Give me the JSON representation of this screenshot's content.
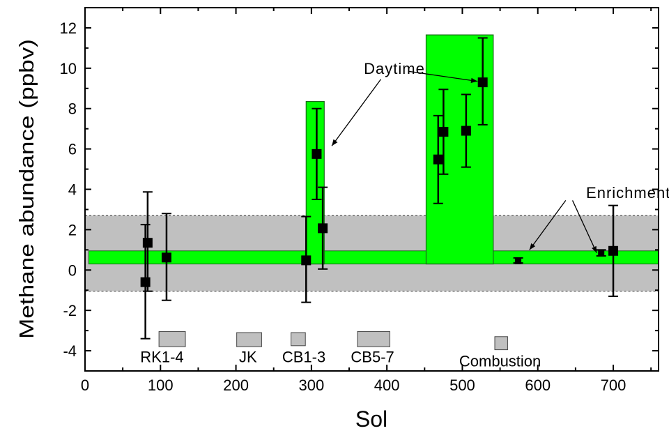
{
  "chart_data": {
    "type": "scatter",
    "title": "",
    "xlabel": "Sol",
    "ylabel": "Methane abundance (ppbv)",
    "xlim": [
      0,
      760
    ],
    "ylim": [
      -5,
      13
    ],
    "xticks": [
      0,
      100,
      200,
      300,
      400,
      500,
      600,
      700
    ],
    "yticks": [
      -4,
      -2,
      0,
      2,
      4,
      6,
      8,
      10,
      12
    ],
    "grid": false,
    "colors": {
      "green": "#00ff00",
      "grey": "#c0c0c0",
      "marker": "#000000"
    },
    "points": [
      {
        "x": 80,
        "y": -0.6,
        "ylo": -3.4,
        "yhi": 2.25
      },
      {
        "x": 83,
        "y": 1.35,
        "ylo": -1.05,
        "yhi": 3.87
      },
      {
        "x": 108,
        "y": 0.62,
        "ylo": -1.5,
        "yhi": 2.8
      },
      {
        "x": 293,
        "y": 0.48,
        "ylo": -1.6,
        "yhi": 2.65
      },
      {
        "x": 307,
        "y": 5.75,
        "ylo": 3.5,
        "yhi": 8.0
      },
      {
        "x": 315,
        "y": 2.07,
        "ylo": 0.05,
        "yhi": 4.1
      },
      {
        "x": 468,
        "y": 5.48,
        "ylo": 3.3,
        "yhi": 7.65
      },
      {
        "x": 475,
        "y": 6.85,
        "ylo": 4.75,
        "yhi": 8.95
      },
      {
        "x": 505,
        "y": 6.9,
        "ylo": 5.1,
        "yhi": 8.7
      },
      {
        "x": 527,
        "y": 9.3,
        "ylo": 7.2,
        "yhi": 11.5
      },
      {
        "x": 574,
        "y": 0.45,
        "ylo": 0.35,
        "yhi": 0.6
      },
      {
        "x": 684,
        "y": 0.85,
        "ylo": 0.7,
        "yhi": 1.0
      },
      {
        "x": 700,
        "y": 0.95,
        "ylo": -1.3,
        "yhi": 3.2
      }
    ],
    "bands": [
      {
        "kind": "grey-dashed",
        "x0": 0,
        "x1": 760,
        "y0": -1.05,
        "y1": 2.7
      },
      {
        "kind": "green",
        "x0": 5,
        "x1": 760,
        "y0": 0.3,
        "y1": 0.95
      }
    ],
    "daytime_boxes": [
      {
        "x0": 293,
        "x1": 317,
        "y0": 0.3,
        "y1": 8.35
      },
      {
        "x0": 452,
        "x1": 541,
        "y0": 0.3,
        "y1": 11.65
      }
    ],
    "experiments": [
      {
        "label": "RK1-4",
        "x0": 98,
        "x1": 133,
        "y0": -3.8,
        "y1": -3.05,
        "lx": 102,
        "ly": -4.3
      },
      {
        "label": "JK",
        "x0": 201,
        "x1": 234,
        "y0": -3.8,
        "y1": -3.1,
        "lx": 216,
        "ly": -4.3
      },
      {
        "label": "CB1-3",
        "x0": 273,
        "x1": 292,
        "y0": -3.75,
        "y1": -3.1,
        "lx": 290,
        "ly": -4.3
      },
      {
        "label": "CB5-7",
        "x0": 361,
        "x1": 404,
        "y0": -3.8,
        "y1": -3.05,
        "lx": 381,
        "ly": -4.3
      },
      {
        "label": "Combustion",
        "x0": 543,
        "x1": 560,
        "y0": -3.95,
        "y1": -3.3,
        "lx": 550,
        "ly": -4.5
      }
    ],
    "annotations": [
      {
        "text": "Daytime",
        "x": 410,
        "y": 10.0,
        "arrows": [
          [
            392,
            9.45,
            327,
            6.15
          ],
          [
            428,
            9.85,
            520,
            9.35
          ]
        ]
      },
      {
        "text": "Enrichment",
        "x": 720,
        "y": 3.85,
        "arrows": [
          [
            637,
            3.45,
            589,
            1.0
          ],
          [
            646,
            3.45,
            678,
            0.85
          ]
        ]
      }
    ]
  }
}
